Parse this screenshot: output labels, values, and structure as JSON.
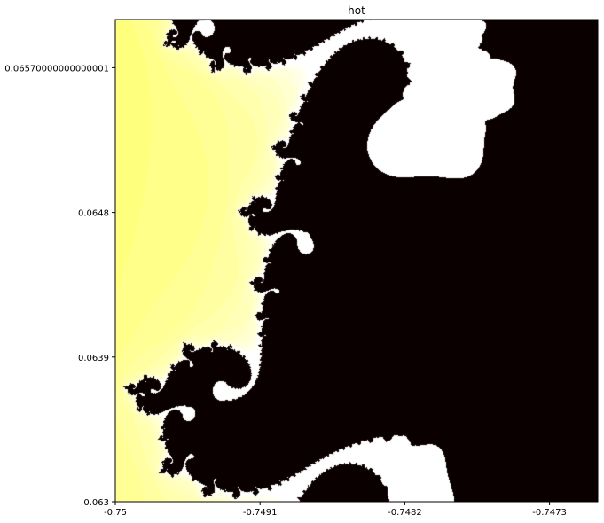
{
  "chart_data": {
    "type": "heatmap",
    "title": "hot",
    "colormap": "hot",
    "xlabel": "",
    "ylabel": "",
    "xlim": [
      -0.75,
      -0.747
    ],
    "ylim": [
      0.063,
      0.066
    ],
    "x_ticks": [
      {
        "value": -0.75,
        "label": "-0.75"
      },
      {
        "value": -0.7491,
        "label": "-0.7491"
      },
      {
        "value": -0.7482,
        "label": "-0.7482"
      },
      {
        "value": -0.7473,
        "label": "-0.7473"
      }
    ],
    "y_ticks": [
      {
        "value": 0.063,
        "label": "0.063"
      },
      {
        "value": 0.0639,
        "label": "0.0639"
      },
      {
        "value": 0.0648,
        "label": "0.0648"
      },
      {
        "value": 0.0657,
        "label": "0.06570000000000001"
      }
    ],
    "data_description": "Mandelbrot set escape-time iteration counts rendered with the matplotlib 'hot' colormap",
    "max_iterations": 100,
    "grid": false,
    "colors": {
      "set_interior": "#0b0000",
      "low_iter": "#ff1f00",
      "mid_iter": "#ff8a00",
      "high_iter": "#ffff40"
    }
  }
}
